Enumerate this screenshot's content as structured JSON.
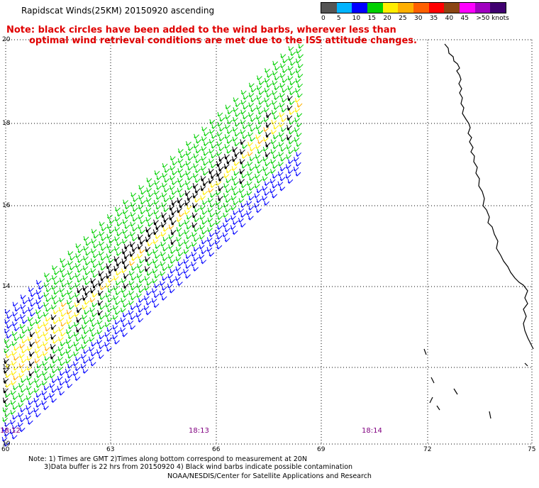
{
  "header": {
    "title": "Rapidscat Winds(25KM) 20150920 ascending",
    "note_line1": "Note: black circles have been added to the wind barbs, wherever less than",
    "note_line2": "optimal wind retrieval conditions are met due to the ISS attitude changes."
  },
  "legend": {
    "colors": [
      "#555555",
      "#00b4ff",
      "#0000ff",
      "#00d000",
      "#ffee00",
      "#ffb000",
      "#ff6000",
      "#ff0000",
      "#8b4513",
      "#ff00ff",
      "#a000c0",
      "#400070"
    ],
    "ticks": [
      "0",
      "5",
      "10",
      "15",
      "20",
      "25",
      "30",
      "35",
      "40",
      "45",
      ">50 knots"
    ]
  },
  "map": {
    "lat_labels": [
      "20",
      "18",
      "16",
      "14",
      "12",
      "10"
    ],
    "lon_labels": [
      "60",
      "63",
      "66",
      "69",
      "72",
      "75"
    ],
    "time_labels": [
      "18:12",
      "18:13",
      "18:14"
    ],
    "colors": {
      "gridline": "#000000",
      "coast": "#000000",
      "calm_blue": "#0000ff",
      "moderate_green": "#00d000",
      "strong_yellow": "#ffee00",
      "orange": "#ffb000",
      "flagged_black": "#000000"
    }
  },
  "footer": {
    "note_line1": "Note: 1) Times are GMT 2)Times along bottom correspond to measurement at 20N",
    "note_line2": "3)Data buffer is 22 hrs from 20150920 4) Black wind barbs indicate possible contamination",
    "credit": "NOAA/NESDIS/Center for Satellite Applications and Research"
  }
}
